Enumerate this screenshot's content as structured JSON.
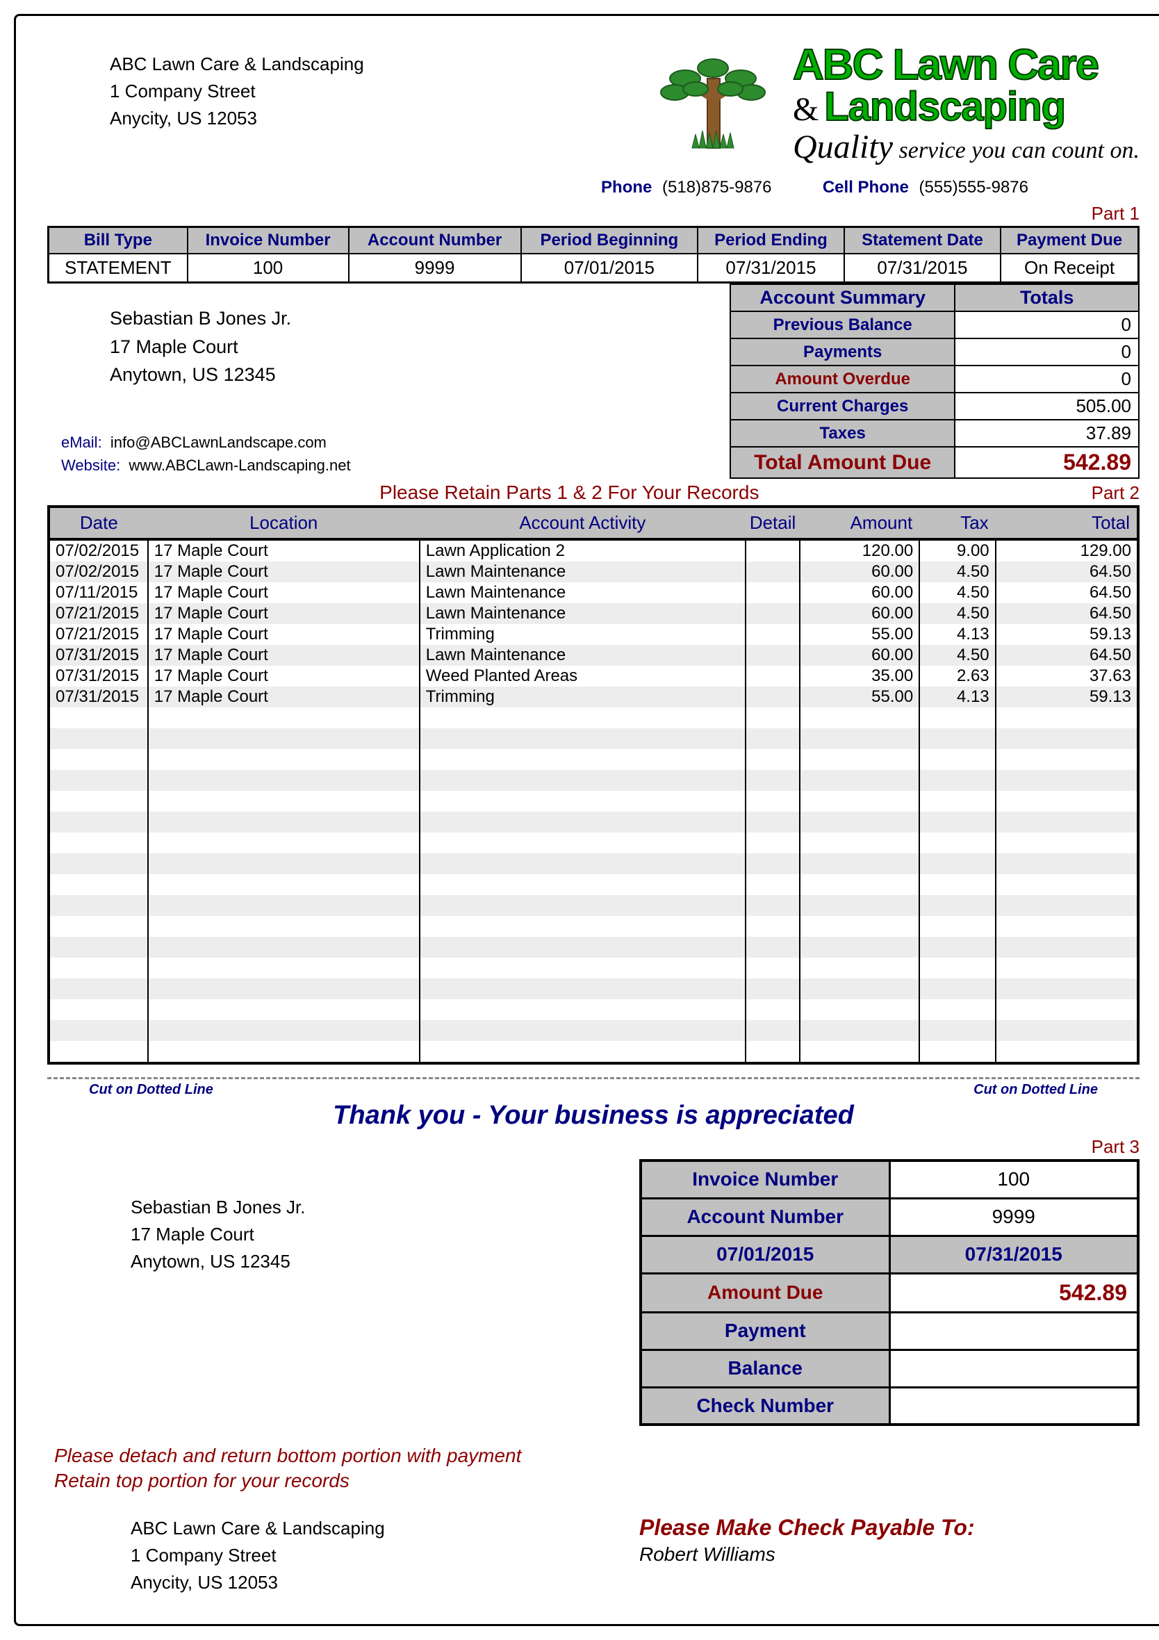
{
  "company": {
    "name": "ABC Lawn Care & Landscaping",
    "street": "1 Company Street",
    "city_line": "Anycity, US   12053"
  },
  "brand": {
    "line1": "ABC Lawn Care",
    "line2": "Landscaping",
    "amp": "&",
    "tagline_q": "Quality",
    "tagline_rest": " service you can count on."
  },
  "phones": {
    "phone_label": "Phone",
    "phone": "(518)875-9876",
    "cell_label": "Cell Phone",
    "cell": "(555)555-9876"
  },
  "parts": {
    "p1": "Part 1",
    "p2": "Part 2",
    "p3": "Part 3"
  },
  "info_headers": {
    "bill_type": "Bill Type",
    "invoice": "Invoice Number",
    "account": "Account Number",
    "pbegin": "Period Beginning",
    "pend": "Period Ending",
    "stmt": "Statement Date",
    "paydue": "Payment Due"
  },
  "info_values": {
    "bill_type": "STATEMENT",
    "invoice": "100",
    "account": "9999",
    "pbegin": "07/01/2015",
    "pend": "07/31/2015",
    "stmt": "07/31/2015",
    "paydue": "On Receipt"
  },
  "customer": {
    "name": "Sebastian B Jones Jr.",
    "street": "17 Maple Court",
    "city_line": "Anytown, US  12345"
  },
  "summary": {
    "hdr1": "Account Summary",
    "hdr2": "Totals",
    "prev_lbl": "Previous Balance",
    "prev_val": "0",
    "pay_lbl": "Payments",
    "pay_val": "0",
    "over_lbl": "Amount Overdue",
    "over_val": "0",
    "curr_lbl": "Current Charges",
    "curr_val": "505.00",
    "tax_lbl": "Taxes",
    "tax_val": "37.89",
    "tot_lbl": "Total Amount Due",
    "tot_val": "542.89"
  },
  "contact": {
    "email_lbl": "eMail:",
    "email": "info@ABCLawnLandscape.com",
    "web_lbl": "Website:",
    "web": "www.ABCLawn-Landscaping.net"
  },
  "retain": "Please Retain Parts 1 & 2 For Your Records",
  "activity_headers": {
    "date": "Date",
    "location": "Location",
    "activity": "Account Activity",
    "detail": "Detail",
    "amount": "Amount",
    "tax": "Tax",
    "total": "Total"
  },
  "activity": [
    {
      "date": "07/02/2015",
      "loc": "17 Maple Court",
      "act": "Lawn Application 2",
      "det": "",
      "amt": "120.00",
      "tax": "9.00",
      "tot": "129.00"
    },
    {
      "date": "07/02/2015",
      "loc": "17 Maple Court",
      "act": "Lawn Maintenance",
      "det": "",
      "amt": "60.00",
      "tax": "4.50",
      "tot": "64.50"
    },
    {
      "date": "07/11/2015",
      "loc": "17 Maple Court",
      "act": "Lawn Maintenance",
      "det": "",
      "amt": "60.00",
      "tax": "4.50",
      "tot": "64.50"
    },
    {
      "date": "07/21/2015",
      "loc": "17 Maple Court",
      "act": "Lawn Maintenance",
      "det": "",
      "amt": "60.00",
      "tax": "4.50",
      "tot": "64.50"
    },
    {
      "date": "07/21/2015",
      "loc": "17 Maple Court",
      "act": "Trimming",
      "det": "",
      "amt": "55.00",
      "tax": "4.13",
      "tot": "59.13"
    },
    {
      "date": "07/31/2015",
      "loc": "17 Maple Court",
      "act": "Lawn Maintenance",
      "det": "",
      "amt": "60.00",
      "tax": "4.50",
      "tot": "64.50"
    },
    {
      "date": "07/31/2015",
      "loc": "17 Maple Court",
      "act": "Weed Planted Areas",
      "det": "",
      "amt": "35.00",
      "tax": "2.63",
      "tot": "37.63"
    },
    {
      "date": "07/31/2015",
      "loc": "17 Maple Court",
      "act": "Trimming",
      "det": "",
      "amt": "55.00",
      "tax": "4.13",
      "tot": "59.13"
    }
  ],
  "blank_rows": 17,
  "cut": {
    "left": "Cut on Dotted Line",
    "right": "Cut on Dotted Line"
  },
  "thanks": "Thank you - Your business is appreciated",
  "stub": {
    "inv_lbl": "Invoice Number",
    "inv_val": "100",
    "acc_lbl": "Account Number",
    "acc_val": "9999",
    "date1": "07/01/2015",
    "date2": "07/31/2015",
    "due_lbl": "Amount Due",
    "due_val": "542.89",
    "pay_lbl": "Payment",
    "pay_val": "",
    "bal_lbl": "Balance",
    "bal_val": "",
    "chk_lbl": "Check Number",
    "chk_val": ""
  },
  "detach": {
    "line1": "Please detach and return bottom portion with payment",
    "line2": "Retain top portion for your records"
  },
  "payable": {
    "line1": "Please Make Check Payable To:",
    "line2": "Robert Williams"
  },
  "colors": {
    "header_bg": "#c0c0c0",
    "navy": "#000080",
    "maroon": "#8b0000",
    "stripe": "#ededed",
    "green": "#00b000",
    "dark_green": "#003800",
    "brown": "#8b5a2b"
  }
}
